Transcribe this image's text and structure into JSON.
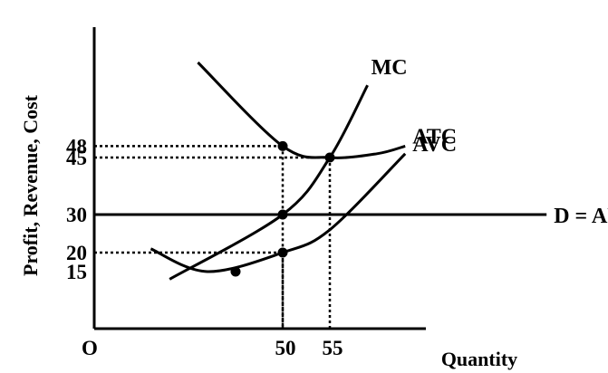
{
  "chart_data": {
    "type": "line",
    "title": "",
    "xlabel": "Quantity",
    "ylabel": "Profit, Revenue, Cost",
    "origin_label": "O",
    "x_ticks": [
      "50",
      "55"
    ],
    "y_ticks": [
      "48",
      "45",
      "30",
      "20",
      "15"
    ],
    "curves": [
      {
        "name": "MC",
        "label": "MC",
        "points": [
          [
            38,
            13
          ],
          [
            50,
            30
          ],
          [
            55,
            45
          ],
          [
            59,
            64
          ]
        ]
      },
      {
        "name": "ATC",
        "label": "ATC",
        "points": [
          [
            41,
            70
          ],
          [
            50,
            48
          ],
          [
            55,
            45
          ],
          [
            60,
            46
          ],
          [
            63,
            48
          ]
        ]
      },
      {
        "name": "AVC",
        "label": "AVC",
        "points": [
          [
            36,
            21
          ],
          [
            42,
            15
          ],
          [
            50,
            20
          ],
          [
            55,
            26
          ],
          [
            63,
            46
          ]
        ]
      },
      {
        "name": "D = AR",
        "label": "D = AR",
        "points": [
          [
            30,
            30
          ],
          [
            78,
            30
          ]
        ]
      }
    ],
    "points": [
      {
        "x": 50,
        "y": 48
      },
      {
        "x": 55,
        "y": 45
      },
      {
        "x": 50,
        "y": 30
      },
      {
        "x": 50,
        "y": 20
      },
      {
        "x": 45,
        "y": 15
      }
    ],
    "guides": [
      {
        "x": 50,
        "y": 48
      },
      {
        "x": 55,
        "y": 45
      },
      {
        "x": 50,
        "y": 20
      }
    ],
    "xlim": [
      30,
      78
    ],
    "ylim": [
      0,
      80
    ],
    "grid": false,
    "legend": "none"
  }
}
